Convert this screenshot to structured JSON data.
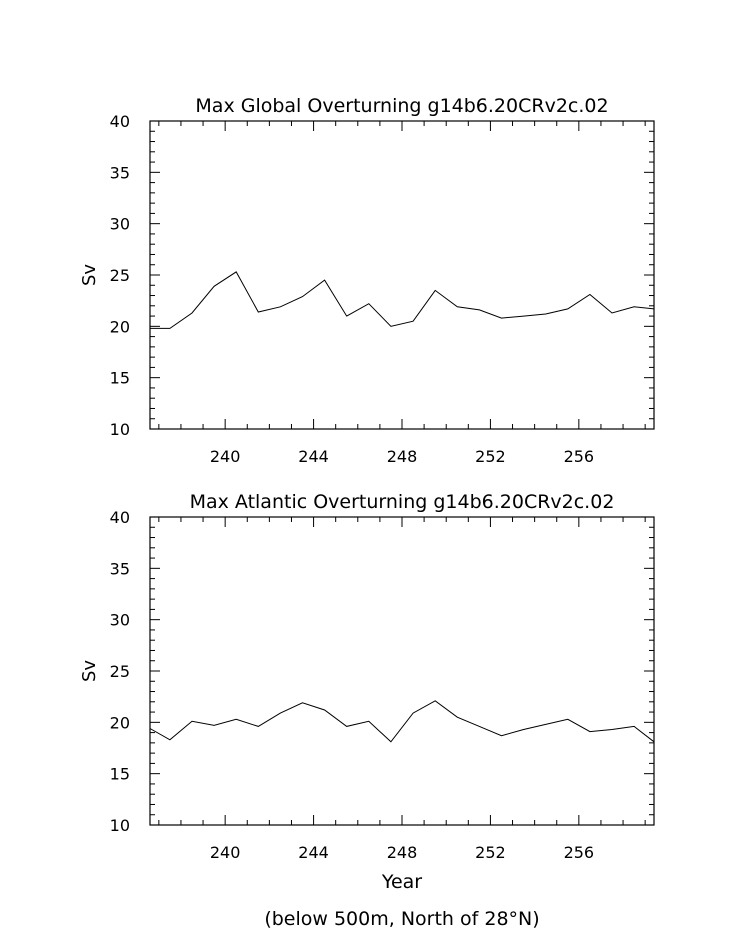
{
  "chart_data": [
    {
      "type": "line",
      "title": "Max Global Overturning g14b6.20CRv2c.02",
      "ylabel": "Sv",
      "xlabel": "",
      "xlim": [
        236.6,
        259.4
      ],
      "ylim": [
        10,
        40
      ],
      "xticks": [
        240,
        244,
        248,
        252,
        256
      ],
      "yticks": [
        10,
        15,
        20,
        25,
        30,
        35,
        40
      ],
      "x": [
        236.6,
        237.5,
        238.5,
        239.5,
        240.5,
        241.5,
        242.5,
        243.5,
        244.5,
        245.5,
        246.5,
        247.5,
        248.5,
        249.5,
        250.5,
        251.5,
        252.5,
        253.5,
        254.5,
        255.5,
        256.5,
        257.5,
        258.5,
        259.4
      ],
      "series": [
        {
          "values": [
            19.8,
            19.8,
            21.3,
            23.9,
            25.3,
            21.4,
            21.9,
            22.9,
            24.5,
            21.0,
            22.2,
            20.0,
            20.5,
            23.5,
            21.9,
            21.6,
            20.8,
            21.0,
            21.2,
            21.7,
            23.1,
            21.3,
            21.9,
            21.7
          ]
        }
      ]
    },
    {
      "type": "line",
      "title": "Max Atlantic Overturning g14b6.20CRv2c.02",
      "ylabel": "Sv",
      "xlabel": "Year",
      "xlim": [
        236.6,
        259.4
      ],
      "ylim": [
        10,
        40
      ],
      "xticks": [
        240,
        244,
        248,
        252,
        256
      ],
      "yticks": [
        10,
        15,
        20,
        25,
        30,
        35,
        40
      ],
      "x": [
        236.6,
        237.5,
        238.5,
        239.5,
        240.5,
        241.5,
        242.5,
        243.5,
        244.5,
        245.5,
        246.5,
        247.5,
        248.5,
        249.5,
        250.5,
        251.5,
        252.5,
        253.5,
        254.5,
        255.5,
        256.5,
        257.5,
        258.5,
        259.4
      ],
      "series": [
        {
          "values": [
            19.4,
            18.3,
            20.1,
            19.7,
            20.3,
            19.6,
            20.9,
            21.9,
            21.2,
            19.6,
            20.1,
            18.1,
            20.9,
            22.1,
            20.5,
            19.6,
            18.7,
            19.3,
            19.8,
            20.3,
            19.1,
            19.3,
            19.6,
            18.1
          ]
        }
      ]
    }
  ],
  "footnote": "(below 500m, North of 28°N)"
}
